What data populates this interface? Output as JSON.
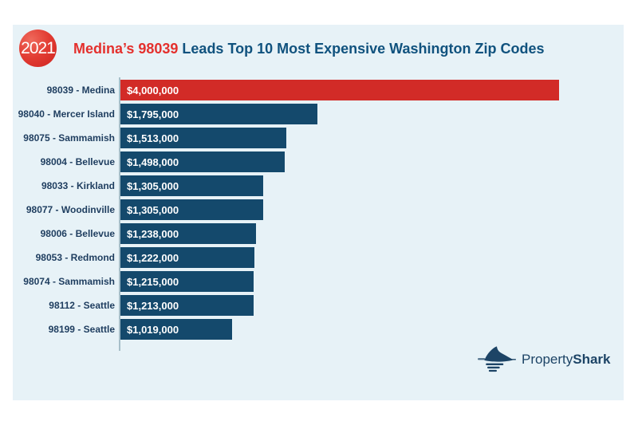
{
  "header": {
    "year_badge": "2021",
    "title_highlight": "Medina’s 98039",
    "title_rest": "Leads Top 10 Most Expensive Washington Zip Codes",
    "highlight_color": "#e4302d",
    "title_color": "#10527e",
    "badge_color": "#d83228"
  },
  "chart_data": {
    "type": "bar",
    "orientation": "horizontal",
    "title": "Medina’s 98039 Leads Top 10 Most Expensive Washington Zip Codes",
    "categories": [
      "98039 - Medina",
      "98040 - Mercer Island",
      "98075 - Sammamish",
      "98004 - Bellevue",
      "98033 - Kirkland",
      "98077 - Woodinville",
      "98006 - Bellevue",
      "98053 - Redmond",
      "98074 - Sammamish",
      "98112 - Seattle",
      "98199 - Seattle"
    ],
    "values": [
      4000000,
      1795000,
      1513000,
      1498000,
      1305000,
      1305000,
      1238000,
      1222000,
      1215000,
      1213000,
      1019000
    ],
    "value_labels": [
      "$4,000,000",
      "$1,795,000",
      "$1,513,000",
      "$1,498,000",
      "$1,305,000",
      "$1,305,000",
      "$1,238,000",
      "$1,222,000",
      "$1,215,000",
      "$1,213,000",
      "$1,019,000"
    ],
    "xlim": [
      0,
      4000000
    ],
    "xlabel": "",
    "ylabel": "",
    "grid": false,
    "legend": "none",
    "highlight_index": 0,
    "bar_color_highlight": "#d22b27",
    "bar_color_default": "#14496c",
    "label_color": "#1e3d5f",
    "value_text_color": "#ffffff",
    "background_color": "#e7f2f7"
  },
  "logo": {
    "text_regular": "Property",
    "text_bold": "Shark",
    "color": "#1d4466",
    "icon": "shark-icon"
  }
}
